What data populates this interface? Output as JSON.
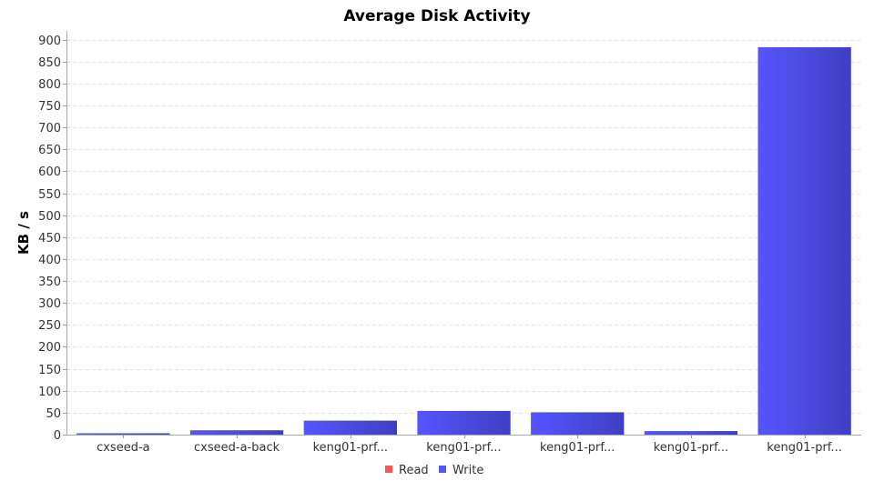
{
  "chart_data": {
    "type": "bar",
    "title": "Average Disk Activity",
    "xlabel": "",
    "ylabel": "KB / s",
    "ylim": [
      0,
      920
    ],
    "yticks": [
      0,
      50,
      100,
      150,
      200,
      250,
      300,
      350,
      400,
      450,
      500,
      550,
      600,
      650,
      700,
      750,
      800,
      850,
      900
    ],
    "grid": true,
    "legend_position": "bottom",
    "categories": [
      "cxseed-a",
      "cxseed-a-back",
      "keng01-prf...",
      "keng01-prf...",
      "keng01-prf...",
      "keng01-prf...",
      "keng01-prf..."
    ],
    "series": [
      {
        "name": "Read",
        "color": "#ff5555",
        "values": [
          0,
          0,
          0,
          0,
          0,
          0,
          0
        ]
      },
      {
        "name": "Write",
        "color": "#5555ff",
        "values": [
          2,
          10,
          32,
          54,
          51,
          8,
          883
        ]
      }
    ]
  }
}
